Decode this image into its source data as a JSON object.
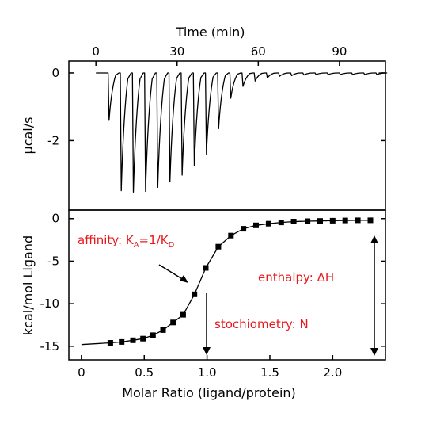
{
  "chart_data": [
    {
      "type": "line",
      "panel": "thermogram",
      "xlabel": "Time (min)",
      "ylabel": "μcal/s",
      "xlim": [
        -10,
        107
      ],
      "ylim": [
        -4.05,
        0.35
      ],
      "xticks": [
        "0",
        "30",
        "60",
        "90"
      ],
      "yticks": [
        "0",
        "-2"
      ],
      "baseline_y": 0,
      "series": [
        {
          "injection_times_min": [
            4.5,
            9,
            13.5,
            18,
            22.5,
            27,
            31.5,
            36,
            40.5,
            45,
            49.5,
            54,
            58.5,
            63,
            67.5,
            72,
            76.5,
            81,
            85.5,
            90,
            94.5,
            99,
            103.5
          ],
          "peak_values": [
            -1.4,
            -3.48,
            -3.52,
            -3.5,
            -3.38,
            -3.22,
            -3.02,
            -2.74,
            -2.4,
            -1.65,
            -0.75,
            -0.4,
            -0.24,
            -0.15,
            -0.1,
            -0.08,
            -0.06,
            -0.05,
            -0.05,
            -0.05,
            -0.05,
            -0.05,
            -0.05
          ]
        }
      ]
    },
    {
      "type": "scatter",
      "panel": "binding-isotherm",
      "xlabel": "Molar Ratio (ligand/protein)",
      "ylabel": "kcal/mol Ligand",
      "xlim": [
        -0.1,
        2.42
      ],
      "ylim": [
        -16.6,
        1.0
      ],
      "xticks": [
        "0",
        "0.5",
        "1.0",
        "1.5",
        "2.0"
      ],
      "yticks": [
        "0",
        "-5",
        "-10",
        "-15"
      ],
      "fit_start": [
        0.0,
        -14.8
      ],
      "series": [
        {
          "x": [
            0.23,
            0.32,
            0.41,
            0.49,
            0.57,
            0.65,
            0.73,
            0.81,
            0.9,
            0.99,
            1.09,
            1.19,
            1.29,
            1.39,
            1.49,
            1.59,
            1.69,
            1.8,
            1.9,
            2.0,
            2.1,
            2.2,
            2.3
          ],
          "y": [
            -14.6,
            -14.5,
            -14.3,
            -14.1,
            -13.7,
            -13.1,
            -12.2,
            -11.3,
            -8.9,
            -5.8,
            -3.3,
            -2.0,
            -1.2,
            -0.8,
            -0.6,
            -0.45,
            -0.35,
            -0.3,
            -0.28,
            -0.25,
            -0.22,
            -0.2,
            -0.2
          ]
        }
      ],
      "annotations": {
        "affinity": {
          "text": "affinity: K",
          "sub_a": "A",
          "mid": "=1/K",
          "sub_d": "D"
        },
        "enthalpy": "enthalpy: ΔH",
        "stoichiometry": "stochiometry: N"
      }
    }
  ]
}
